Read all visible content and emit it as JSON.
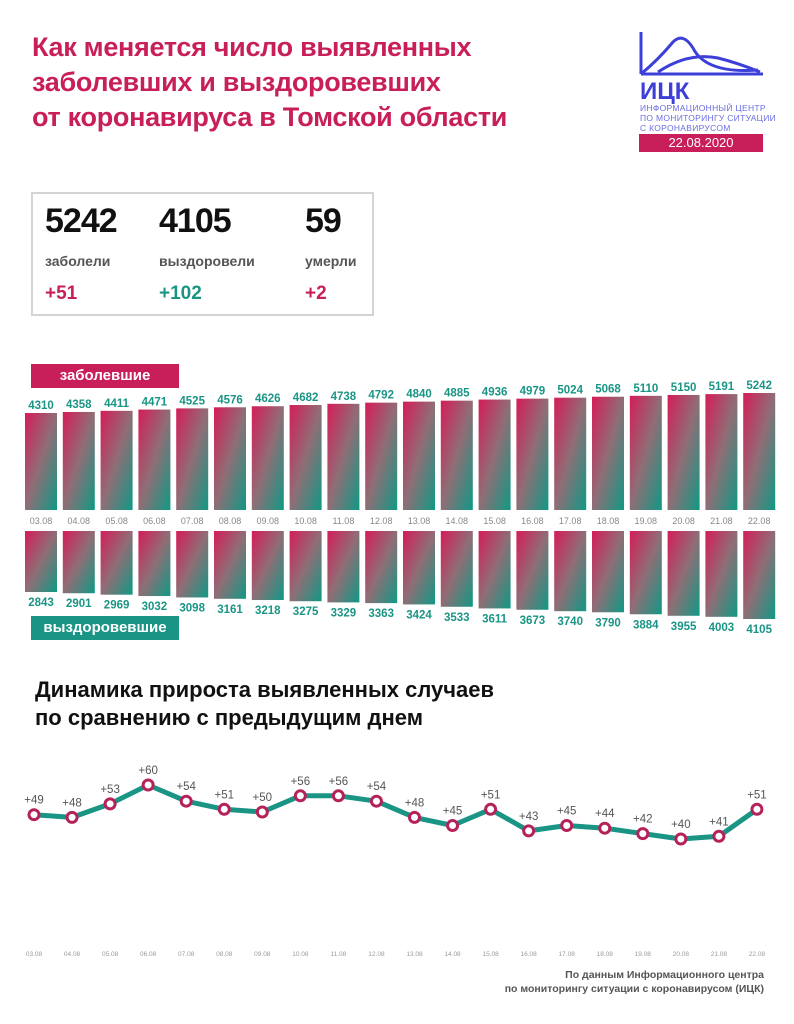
{
  "title": [
    "Как меняется число выявленных",
    "заболевших и выздоровевших",
    "от коронавируса в Томской области"
  ],
  "logo": {
    "abbr": "ИЦК",
    "subtitle": [
      "ИНФОРМАЦИОННЫЙ ЦЕНТР",
      "ПО МОНИТОРИНГУ СИТУАЦИИ",
      "С КОРОНАВИРУСОМ"
    ],
    "date": "22.08.2020",
    "color": "#3c3fd8"
  },
  "stats": [
    {
      "value": "5242",
      "label": "заболели",
      "delta": "+51",
      "color": "#c81f5a"
    },
    {
      "value": "4105",
      "label": "выздоровели",
      "delta": "+102",
      "color": "#1a9585"
    },
    {
      "value": "59",
      "label": "умерли",
      "delta": "+2",
      "color": "#c81f5a"
    }
  ],
  "colors": {
    "accent": "#c81f5a",
    "teal": "#1a9585"
  },
  "subtitle": [
    "Динамика прироста выявленных случаев",
    "по сравнению с предыдущим днем"
  ],
  "source": [
    "По данным Информационного центра",
    "по мониторингу ситуации с коронавирусом (ИЦК)"
  ],
  "chart_data": [
    {
      "type": "bar",
      "categories": [
        "03.08",
        "04.08",
        "05.08",
        "06.08",
        "07.08",
        "08.08",
        "09.08",
        "10.08",
        "11.08",
        "12.08",
        "13.08",
        "14.08",
        "15.08",
        "16.08",
        "17.08",
        "18.08",
        "19.08",
        "20.08",
        "21.08",
        "22.08"
      ],
      "series": [
        {
          "name": "заболевшие",
          "values": [
            4310,
            4358,
            4411,
            4471,
            4525,
            4576,
            4626,
            4682,
            4738,
            4792,
            4840,
            4885,
            4936,
            4979,
            5024,
            5068,
            5110,
            5150,
            5191,
            5242
          ]
        },
        {
          "name": "выздоровевшие",
          "values": [
            2843,
            2901,
            2969,
            3032,
            3098,
            3161,
            3218,
            3275,
            3329,
            3363,
            3424,
            3533,
            3611,
            3673,
            3740,
            3790,
            3884,
            3955,
            4003,
            4105
          ]
        }
      ]
    },
    {
      "type": "line",
      "categories": [
        "03.08",
        "04.08",
        "05.08",
        "06.08",
        "07.08",
        "08.08",
        "09.08",
        "10.08",
        "11.08",
        "12.08",
        "13.08",
        "14.08",
        "15.08",
        "16.08",
        "17.08",
        "18.08",
        "19.08",
        "20.08",
        "21.08",
        "22.08"
      ],
      "values": [
        49,
        48,
        53,
        60,
        54,
        51,
        50,
        56,
        56,
        54,
        48,
        45,
        51,
        43,
        45,
        44,
        42,
        40,
        41,
        51
      ],
      "labels": [
        "+49",
        "+48",
        "+53",
        "+60",
        "+54",
        "+51",
        "+50",
        "+56",
        "+56",
        "+54",
        "+48",
        "+45",
        "+51",
        "+43",
        "+45",
        "+44",
        "+42",
        "+40",
        "+41",
        "+51"
      ]
    }
  ]
}
